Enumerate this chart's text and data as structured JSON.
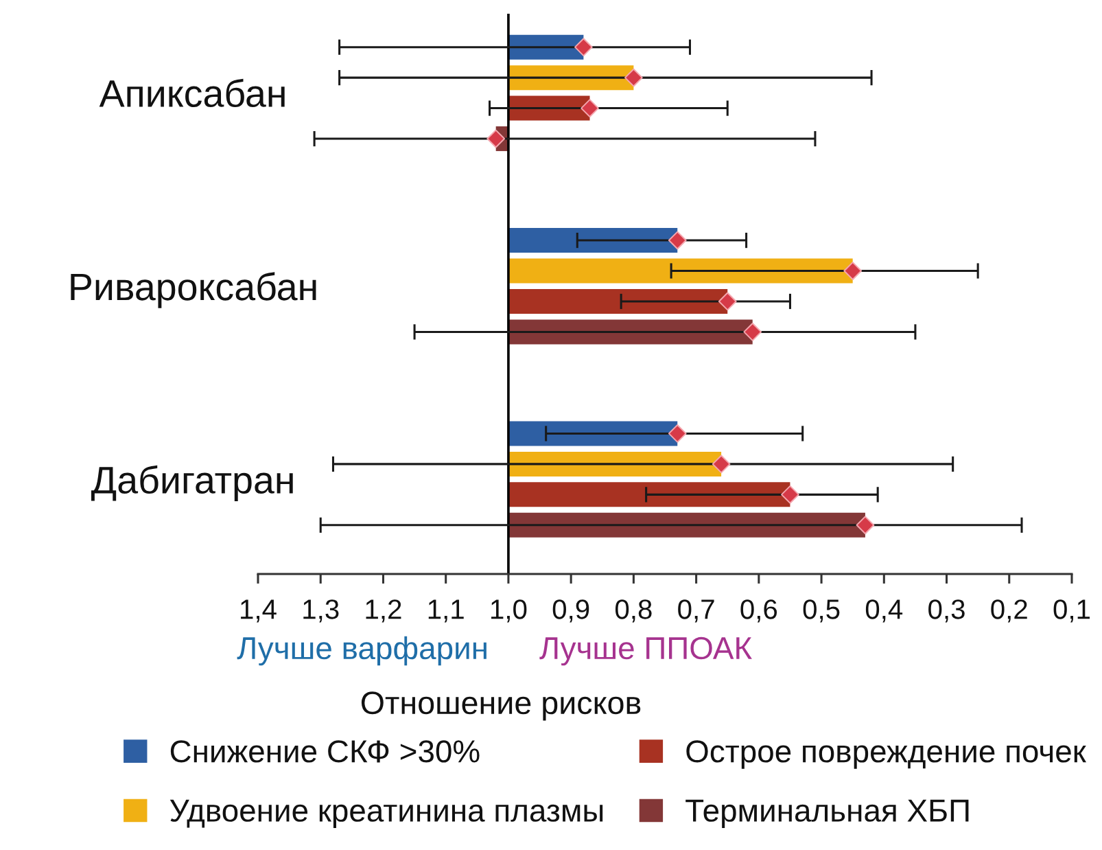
{
  "chart_data": {
    "type": "bar",
    "orientation": "horizontal",
    "categories": [
      "Апиксабан",
      "Ривароксабан",
      "Дабигатран"
    ],
    "series": [
      {
        "name": "Снижение СКФ >30%",
        "color": "#2e5fa3",
        "base": [
          1.0,
          1.0,
          1.0
        ],
        "values": [
          -0.12,
          -0.27,
          -0.27
        ]
      },
      {
        "name": "Удвоение креатинина плазмы",
        "color": "#f0b014",
        "base": [
          1.0,
          1.0,
          1.0
        ],
        "values": [
          -0.2,
          -0.55,
          -0.34
        ]
      },
      {
        "name": "Острое повреждение почек",
        "color": "#a83222",
        "base": [
          1.0,
          1.0,
          1.0
        ],
        "values": [
          -0.13,
          -0.35,
          -0.45
        ]
      },
      {
        "name": "Терминальная ХБП",
        "color": "#833737",
        "base": [
          1.0,
          1.0,
          1.0
        ],
        "values": [
          0.02,
          -0.39,
          -0.57
        ]
      },
      {
        "type": "scatter",
        "color": "#d63a48",
        "values": [
          0.88,
          0.73,
          0.73
        ],
        "errors": [
          [
            0.71,
            1.27
          ],
          [
            0.62,
            0.89
          ],
          [
            0.53,
            0.94
          ]
        ]
      },
      {
        "type": "scatter",
        "color": "#d63a48",
        "values": [
          0.8,
          0.45,
          0.66
        ],
        "errors": [
          [
            0.42,
            1.27
          ],
          [
            0.25,
            0.74
          ],
          [
            0.29,
            1.28
          ]
        ]
      },
      {
        "type": "scatter",
        "color": "#d63a48",
        "values": [
          0.87,
          0.65,
          0.55
        ],
        "errors": [
          [
            0.65,
            1.03
          ],
          [
            0.55,
            0.82
          ],
          [
            0.41,
            0.78
          ]
        ]
      },
      {
        "type": "scatter",
        "color": "#d63a48",
        "values": [
          1.02,
          0.61,
          0.43
        ],
        "errors": [
          [
            0.51,
            1.31
          ],
          [
            0.35,
            1.15
          ],
          [
            0.18,
            1.3
          ]
        ]
      }
    ],
    "xlim": [
      1.4,
      0.1
    ],
    "xticks": [
      {
        "value": 1.4,
        "label": "1,4"
      },
      {
        "value": 1.3,
        "label": "1,3"
      },
      {
        "value": 1.2,
        "label": "1,2"
      },
      {
        "value": 1.1,
        "label": "1,1"
      },
      {
        "value": 1.0,
        "label": "1,0"
      },
      {
        "value": 0.9,
        "label": "0,9"
      },
      {
        "value": 0.8,
        "label": "0,8"
      },
      {
        "value": 0.7,
        "label": "0,7"
      },
      {
        "value": 0.6,
        "label": "0,6"
      },
      {
        "value": 0.5,
        "label": "0,5"
      },
      {
        "value": 0.4,
        "label": "0,4"
      },
      {
        "value": 0.3,
        "label": "0,3"
      },
      {
        "value": 0.2,
        "label": "0,2"
      },
      {
        "value": 0.1,
        "label": "0,1"
      }
    ],
    "xlabel": "Отношение рисков",
    "annotations": [
      "Лучше варфарин",
      "Лучше ППОАК"
    ],
    "ref_lines": [
      {
        "axis": "x",
        "value": 1.0,
        "color": "#000000"
      }
    ],
    "marker": "diamond",
    "legend": "bottom"
  }
}
